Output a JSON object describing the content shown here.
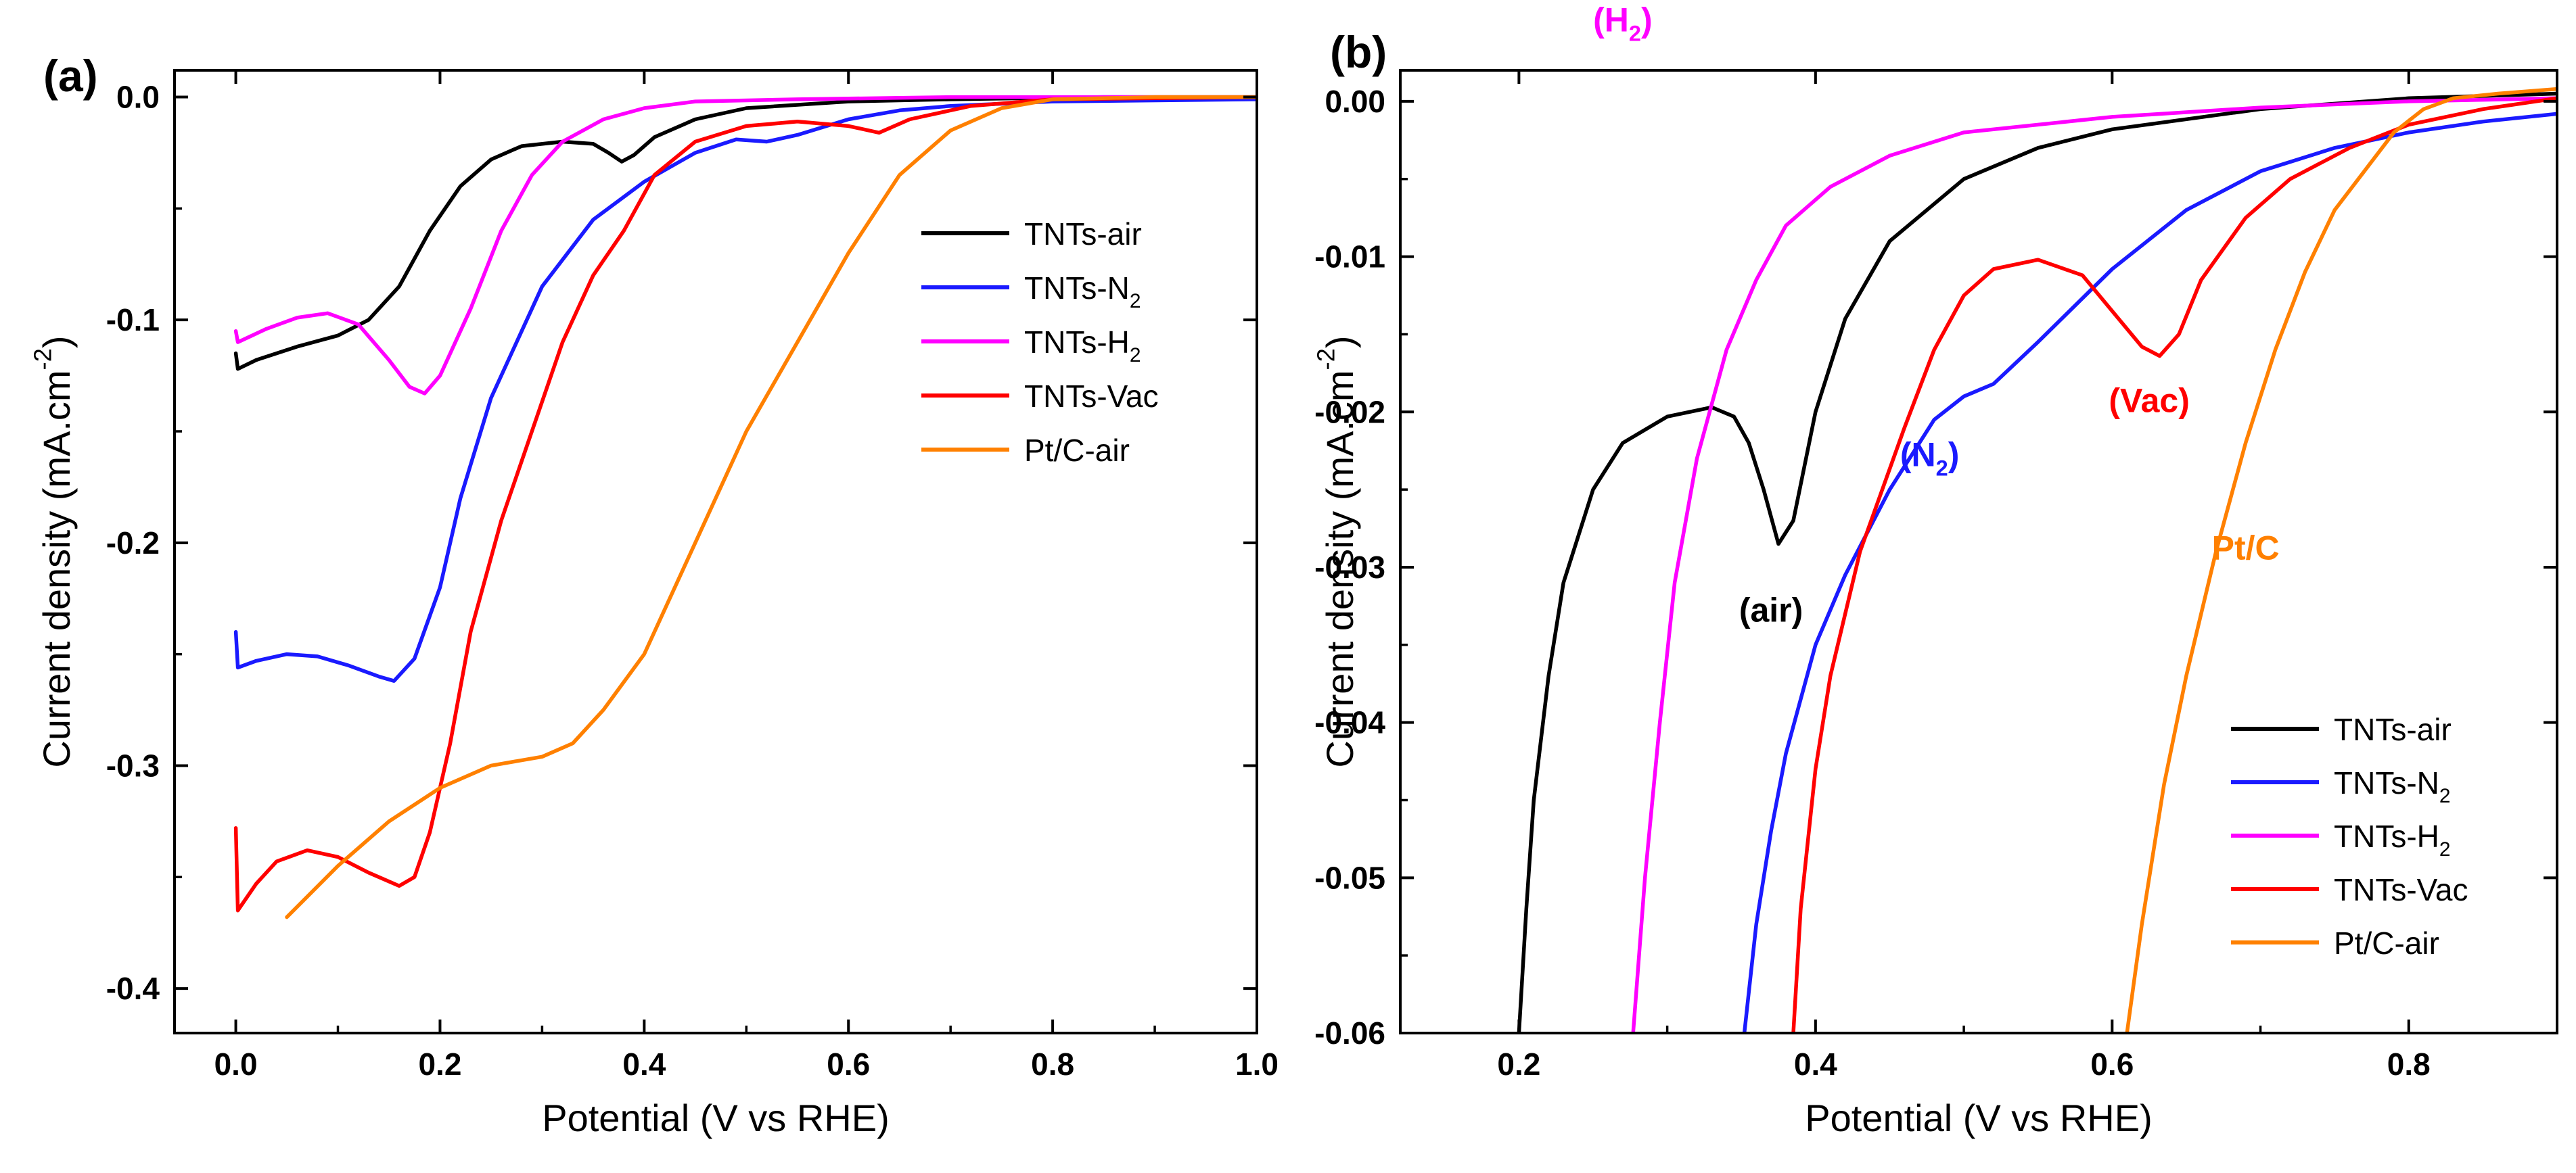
{
  "chart_data": [
    {
      "panel_label": "(a)",
      "type": "line",
      "xlabel": "Potential (V vs RHE)",
      "ylabel_parts": [
        "Current density (mA.cm",
        "-2",
        ")"
      ],
      "xlim": [
        -0.06,
        1.0
      ],
      "ylim": [
        -0.42,
        0.012
      ],
      "xticks": [
        0.0,
        0.2,
        0.4,
        0.6,
        0.8,
        1.0
      ],
      "xtick_labels": [
        "0.0",
        "0.2",
        "0.4",
        "0.6",
        "0.8",
        "1.0"
      ],
      "yticks": [
        0.0,
        -0.1,
        -0.2,
        -0.3,
        -0.4
      ],
      "ytick_labels": [
        "0.0",
        "-0.1",
        "-0.2",
        "-0.3",
        "-0.4"
      ],
      "legend_position": "upper-right",
      "legend": [
        {
          "parts": [
            "TNTs-air"
          ],
          "color": "#000000"
        },
        {
          "parts": [
            "TNTs-N",
            "2"
          ],
          "color": "#1a1aff"
        },
        {
          "parts": [
            "TNTs-H",
            "2"
          ],
          "color": "#ff00ff"
        },
        {
          "parts": [
            "TNTs-Vac"
          ],
          "color": "#ff0000"
        },
        {
          "parts": [
            "Pt/C-air"
          ],
          "color": "#ff8000"
        }
      ],
      "series": [
        {
          "name": "TNTs-air",
          "color": "#000000",
          "points": [
            [
              0.0,
              -0.115
            ],
            [
              0.002,
              -0.122
            ],
            [
              0.02,
              -0.118
            ],
            [
              0.06,
              -0.112
            ],
            [
              0.1,
              -0.107
            ],
            [
              0.13,
              -0.1
            ],
            [
              0.16,
              -0.085
            ],
            [
              0.19,
              -0.06
            ],
            [
              0.22,
              -0.04
            ],
            [
              0.25,
              -0.028
            ],
            [
              0.28,
              -0.022
            ],
            [
              0.32,
              -0.02
            ],
            [
              0.35,
              -0.021
            ],
            [
              0.365,
              -0.025
            ],
            [
              0.378,
              -0.029
            ],
            [
              0.39,
              -0.026
            ],
            [
              0.41,
              -0.018
            ],
            [
              0.45,
              -0.01
            ],
            [
              0.5,
              -0.005
            ],
            [
              0.6,
              -0.002
            ],
            [
              0.7,
              -0.001
            ],
            [
              0.85,
              0.0
            ],
            [
              1.0,
              0.0
            ]
          ]
        },
        {
          "name": "TNTs-N2",
          "color": "#1a1aff",
          "points": [
            [
              0.0,
              -0.24
            ],
            [
              0.002,
              -0.256
            ],
            [
              0.02,
              -0.253
            ],
            [
              0.05,
              -0.25
            ],
            [
              0.08,
              -0.251
            ],
            [
              0.11,
              -0.255
            ],
            [
              0.14,
              -0.26
            ],
            [
              0.155,
              -0.262
            ],
            [
              0.175,
              -0.252
            ],
            [
              0.2,
              -0.22
            ],
            [
              0.22,
              -0.18
            ],
            [
              0.25,
              -0.135
            ],
            [
              0.3,
              -0.085
            ],
            [
              0.35,
              -0.055
            ],
            [
              0.4,
              -0.038
            ],
            [
              0.45,
              -0.025
            ],
            [
              0.49,
              -0.019
            ],
            [
              0.52,
              -0.02
            ],
            [
              0.55,
              -0.017
            ],
            [
              0.6,
              -0.01
            ],
            [
              0.65,
              -0.006
            ],
            [
              0.7,
              -0.004
            ],
            [
              0.8,
              -0.002
            ],
            [
              1.0,
              -0.001
            ]
          ]
        },
        {
          "name": "TNTs-H2",
          "color": "#ff00ff",
          "points": [
            [
              0.0,
              -0.105
            ],
            [
              0.002,
              -0.11
            ],
            [
              0.03,
              -0.104
            ],
            [
              0.06,
              -0.099
            ],
            [
              0.09,
              -0.097
            ],
            [
              0.12,
              -0.102
            ],
            [
              0.15,
              -0.118
            ],
            [
              0.17,
              -0.13
            ],
            [
              0.185,
              -0.133
            ],
            [
              0.2,
              -0.125
            ],
            [
              0.23,
              -0.095
            ],
            [
              0.26,
              -0.06
            ],
            [
              0.29,
              -0.035
            ],
            [
              0.32,
              -0.02
            ],
            [
              0.36,
              -0.01
            ],
            [
              0.4,
              -0.005
            ],
            [
              0.45,
              -0.002
            ],
            [
              0.55,
              -0.001
            ],
            [
              0.7,
              0.0
            ],
            [
              1.0,
              0.0
            ]
          ]
        },
        {
          "name": "TNTs-Vac",
          "color": "#ff0000",
          "points": [
            [
              0.0,
              -0.328
            ],
            [
              0.002,
              -0.365
            ],
            [
              0.02,
              -0.353
            ],
            [
              0.04,
              -0.343
            ],
            [
              0.07,
              -0.338
            ],
            [
              0.1,
              -0.341
            ],
            [
              0.13,
              -0.348
            ],
            [
              0.16,
              -0.354
            ],
            [
              0.175,
              -0.35
            ],
            [
              0.19,
              -0.33
            ],
            [
              0.21,
              -0.29
            ],
            [
              0.23,
              -0.24
            ],
            [
              0.26,
              -0.19
            ],
            [
              0.29,
              -0.15
            ],
            [
              0.32,
              -0.11
            ],
            [
              0.35,
              -0.08
            ],
            [
              0.38,
              -0.06
            ],
            [
              0.41,
              -0.035
            ],
            [
              0.45,
              -0.02
            ],
            [
              0.5,
              -0.013
            ],
            [
              0.55,
              -0.011
            ],
            [
              0.6,
              -0.013
            ],
            [
              0.63,
              -0.016
            ],
            [
              0.66,
              -0.01
            ],
            [
              0.72,
              -0.004
            ],
            [
              0.8,
              -0.001
            ],
            [
              1.0,
              0.0
            ]
          ]
        },
        {
          "name": "Pt/C-air",
          "color": "#ff8000",
          "points": [
            [
              0.05,
              -0.368
            ],
            [
              0.1,
              -0.345
            ],
            [
              0.15,
              -0.325
            ],
            [
              0.2,
              -0.31
            ],
            [
              0.25,
              -0.3
            ],
            [
              0.3,
              -0.296
            ],
            [
              0.33,
              -0.29
            ],
            [
              0.36,
              -0.275
            ],
            [
              0.4,
              -0.25
            ],
            [
              0.45,
              -0.2
            ],
            [
              0.5,
              -0.15
            ],
            [
              0.55,
              -0.11
            ],
            [
              0.6,
              -0.07
            ],
            [
              0.65,
              -0.035
            ],
            [
              0.7,
              -0.015
            ],
            [
              0.75,
              -0.005
            ],
            [
              0.8,
              -0.001
            ],
            [
              0.9,
              0.0
            ],
            [
              1.0,
              0.0
            ]
          ]
        }
      ]
    },
    {
      "panel_label": "(b)",
      "type": "line",
      "xlabel": "Potential (V vs RHE)",
      "ylabel_parts": [
        "Current density (mA.cm",
        "-2",
        ")"
      ],
      "xlim": [
        0.12,
        0.9
      ],
      "ylim": [
        -0.06,
        0.002
      ],
      "xticks": [
        0.2,
        0.4,
        0.6,
        0.8
      ],
      "xtick_labels": [
        "0.2",
        "0.4",
        "0.6",
        "0.8"
      ],
      "yticks": [
        0.0,
        -0.01,
        -0.02,
        -0.03,
        -0.04,
        -0.05,
        -0.06
      ],
      "ytick_labels": [
        "0.00",
        "-0.01",
        "-0.02",
        "-0.03",
        "-0.04",
        "-0.05",
        "-0.06"
      ],
      "legend_position": "lower-right",
      "legend": [
        {
          "parts": [
            "TNTs-air"
          ],
          "color": "#000000"
        },
        {
          "parts": [
            "TNTs-N",
            "2"
          ],
          "color": "#1a1aff"
        },
        {
          "parts": [
            "TNTs-H",
            "2"
          ],
          "color": "#ff00ff"
        },
        {
          "parts": [
            "TNTs-Vac"
          ],
          "color": "#ff0000"
        },
        {
          "parts": [
            "Pt/C-air"
          ],
          "color": "#ff8000"
        }
      ],
      "annotations": [
        {
          "parts": [
            "(H",
            "2",
            ")"
          ],
          "x": 0.27,
          "y": 0.0045,
          "color": "#ff00ff"
        },
        {
          "parts": [
            "(air)"
          ],
          "x": 0.37,
          "y": -0.0335,
          "color": "#000000"
        },
        {
          "parts": [
            "(N",
            "2",
            ")"
          ],
          "x": 0.477,
          "y": -0.0235,
          "color": "#1a1aff"
        },
        {
          "parts": [
            "(Vac)"
          ],
          "x": 0.625,
          "y": -0.02,
          "color": "#ff0000"
        },
        {
          "parts": [
            "Pt/C"
          ],
          "x": 0.69,
          "y": -0.0295,
          "color": "#ff8000"
        }
      ],
      "series": [
        {
          "name": "TNTs-air",
          "color": "#000000",
          "points": [
            [
              0.2,
              -0.06
            ],
            [
              0.205,
              -0.052
            ],
            [
              0.21,
              -0.045
            ],
            [
              0.22,
              -0.037
            ],
            [
              0.23,
              -0.031
            ],
            [
              0.25,
              -0.025
            ],
            [
              0.27,
              -0.022
            ],
            [
              0.3,
              -0.0203
            ],
            [
              0.33,
              -0.0197
            ],
            [
              0.345,
              -0.0203
            ],
            [
              0.355,
              -0.022
            ],
            [
              0.365,
              -0.025
            ],
            [
              0.375,
              -0.0285
            ],
            [
              0.385,
              -0.027
            ],
            [
              0.4,
              -0.02
            ],
            [
              0.42,
              -0.014
            ],
            [
              0.45,
              -0.009
            ],
            [
              0.5,
              -0.005
            ],
            [
              0.55,
              -0.003
            ],
            [
              0.6,
              -0.0018
            ],
            [
              0.7,
              -0.0005
            ],
            [
              0.8,
              0.0002
            ],
            [
              0.9,
              0.0005
            ]
          ]
        },
        {
          "name": "TNTs-N2",
          "color": "#1a1aff",
          "points": [
            [
              0.352,
              -0.06
            ],
            [
              0.36,
              -0.053
            ],
            [
              0.37,
              -0.047
            ],
            [
              0.38,
              -0.042
            ],
            [
              0.4,
              -0.035
            ],
            [
              0.42,
              -0.0305
            ],
            [
              0.45,
              -0.025
            ],
            [
              0.48,
              -0.0205
            ],
            [
              0.5,
              -0.019
            ],
            [
              0.52,
              -0.0182
            ],
            [
              0.55,
              -0.0155
            ],
            [
              0.6,
              -0.0108
            ],
            [
              0.65,
              -0.007
            ],
            [
              0.7,
              -0.0045
            ],
            [
              0.75,
              -0.003
            ],
            [
              0.8,
              -0.002
            ],
            [
              0.85,
              -0.0013
            ],
            [
              0.9,
              -0.0008
            ]
          ]
        },
        {
          "name": "TNTs-H2",
          "color": "#ff00ff",
          "points": [
            [
              0.277,
              -0.06
            ],
            [
              0.285,
              -0.05
            ],
            [
              0.295,
              -0.04
            ],
            [
              0.305,
              -0.031
            ],
            [
              0.32,
              -0.023
            ],
            [
              0.34,
              -0.016
            ],
            [
              0.36,
              -0.0115
            ],
            [
              0.38,
              -0.008
            ],
            [
              0.41,
              -0.0055
            ],
            [
              0.45,
              -0.0035
            ],
            [
              0.5,
              -0.002
            ],
            [
              0.6,
              -0.001
            ],
            [
              0.7,
              -0.0004
            ],
            [
              0.8,
              0.0
            ],
            [
              0.9,
              0.0002
            ]
          ]
        },
        {
          "name": "TNTs-Vac",
          "color": "#ff0000",
          "points": [
            [
              0.385,
              -0.06
            ],
            [
              0.39,
              -0.052
            ],
            [
              0.4,
              -0.043
            ],
            [
              0.41,
              -0.037
            ],
            [
              0.43,
              -0.029
            ],
            [
              0.46,
              -0.021
            ],
            [
              0.48,
              -0.016
            ],
            [
              0.5,
              -0.0125
            ],
            [
              0.52,
              -0.0108
            ],
            [
              0.55,
              -0.0102
            ],
            [
              0.58,
              -0.0112
            ],
            [
              0.6,
              -0.0135
            ],
            [
              0.62,
              -0.0158
            ],
            [
              0.632,
              -0.0164
            ],
            [
              0.645,
              -0.015
            ],
            [
              0.66,
              -0.0115
            ],
            [
              0.69,
              -0.0075
            ],
            [
              0.72,
              -0.005
            ],
            [
              0.76,
              -0.003
            ],
            [
              0.8,
              -0.0015
            ],
            [
              0.85,
              -0.0005
            ],
            [
              0.9,
              0.0002
            ]
          ]
        },
        {
          "name": "Pt/C-air",
          "color": "#ff8000",
          "points": [
            [
              0.61,
              -0.06
            ],
            [
              0.62,
              -0.053
            ],
            [
              0.635,
              -0.044
            ],
            [
              0.65,
              -0.037
            ],
            [
              0.67,
              -0.029
            ],
            [
              0.69,
              -0.022
            ],
            [
              0.71,
              -0.016
            ],
            [
              0.73,
              -0.011
            ],
            [
              0.75,
              -0.007
            ],
            [
              0.77,
              -0.0045
            ],
            [
              0.79,
              -0.002
            ],
            [
              0.81,
              -0.0005
            ],
            [
              0.83,
              0.0002
            ],
            [
              0.86,
              0.0005
            ],
            [
              0.9,
              0.0008
            ]
          ]
        }
      ]
    }
  ]
}
